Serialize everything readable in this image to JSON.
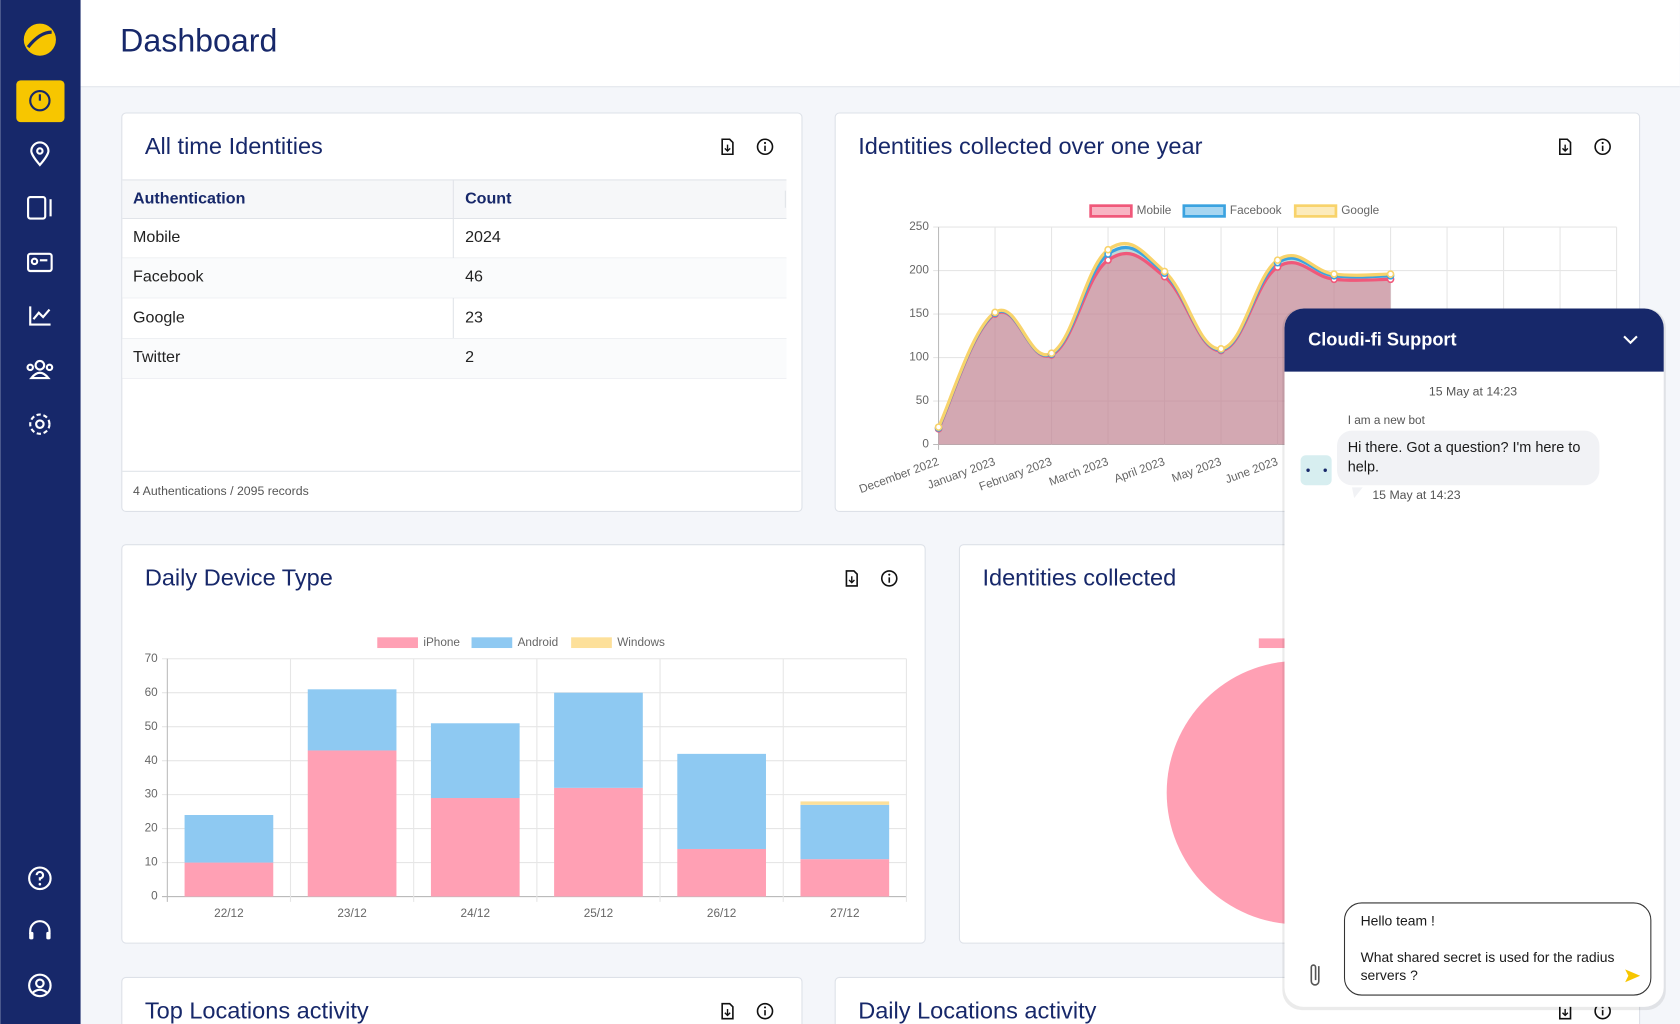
{
  "header": {
    "title": "Dashboard"
  },
  "cards": [
    {
      "title": "All time Identities",
      "table": {
        "columns": [
          "Authentication",
          "Count"
        ],
        "rows": [
          [
            "Mobile",
            2024
          ],
          [
            "Facebook",
            46
          ],
          [
            "Google",
            23
          ],
          [
            "Twitter",
            2
          ]
        ]
      },
      "footer": "4 Authentications / 2095 records"
    },
    {
      "title": "Identities collected"
    },
    {
      "title": "Top Locations activity"
    },
    {
      "title": "Daily Locations activity"
    }
  ],
  "chart_data": [
    {
      "type": "line",
      "stacked": true,
      "title": "Identities collected over one year",
      "categories": [
        "December 2022",
        "January 2023",
        "February 2023",
        "March 2023",
        "April 2023",
        "May 2023",
        "June 2023",
        null,
        null,
        null,
        null,
        null,
        null
      ],
      "series": [
        {
          "name": "Mobile",
          "color": "#f0587a",
          "values": [
            18,
            150,
            103,
            212,
            193,
            108,
            204,
            190,
            190,
            null,
            null,
            null,
            null
          ]
        },
        {
          "name": "Facebook",
          "color": "#3ba3e0",
          "values": [
            1,
            1,
            1,
            7,
            4,
            1,
            5,
            4,
            4,
            null,
            null,
            null,
            null
          ]
        },
        {
          "name": "Google",
          "color": "#f8d36b",
          "values": [
            1,
            1,
            1,
            5,
            2,
            1,
            3,
            2,
            2,
            null,
            null,
            null,
            null
          ]
        }
      ],
      "ylim": [
        0,
        250
      ],
      "yticks": [
        0,
        50,
        100,
        150,
        200,
        250
      ],
      "grid": true,
      "legend": "top"
    },
    {
      "type": "bar",
      "stacked": true,
      "title": "Daily Device Type",
      "categories": [
        "22/12",
        "23/12",
        "24/12",
        "25/12",
        "26/12",
        "27/12"
      ],
      "series": [
        {
          "name": "iPhone",
          "color": "#ffa0b4",
          "values": [
            10,
            43,
            29,
            32,
            14,
            11
          ]
        },
        {
          "name": "Android",
          "color": "#8ec9f2",
          "values": [
            14,
            18,
            22,
            28,
            28,
            16
          ]
        },
        {
          "name": "Windows",
          "color": "#fde09a",
          "values": [
            0,
            0,
            0,
            0,
            0,
            1
          ]
        }
      ],
      "ylim": [
        0,
        70
      ],
      "yticks": [
        0,
        10,
        20,
        30,
        40,
        50,
        60,
        70
      ],
      "grid": true,
      "legend": "top"
    }
  ],
  "chat": {
    "title": "Cloudi-fi Support",
    "timestamp": "15 May at 14:23",
    "bot_name": "I am a new bot",
    "message": "Hi there. Got a question? I'm here to help.",
    "message_time": "15 May at 14:23",
    "input_lines": [
      "Hello team !",
      "What shared secret is used for the radius servers ?"
    ]
  }
}
